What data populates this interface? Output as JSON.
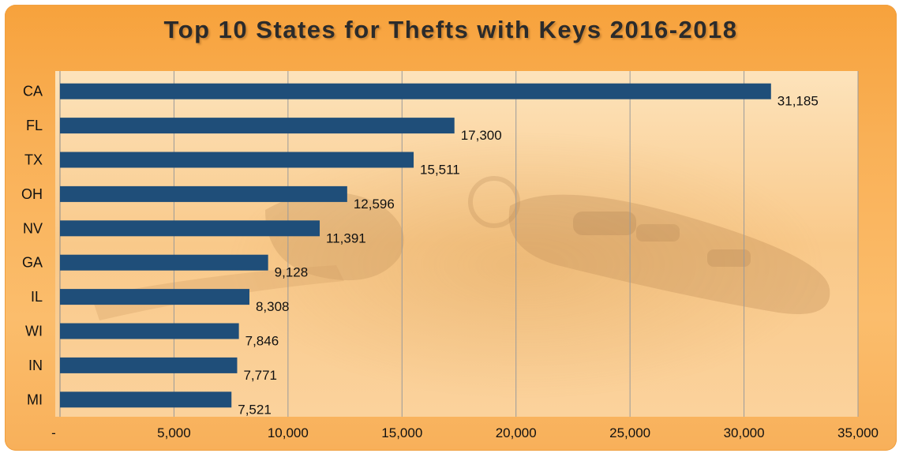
{
  "chart_data": {
    "type": "bar",
    "orientation": "horizontal",
    "title": "Top 10 States for Thefts with Keys 2016-2018",
    "categories": [
      "CA",
      "FL",
      "TX",
      "OH",
      "NV",
      "GA",
      "IL",
      "WI",
      "IN",
      "MI"
    ],
    "values": [
      31185,
      17300,
      15511,
      12596,
      11391,
      9128,
      8308,
      7846,
      7771,
      7521
    ],
    "value_labels": [
      "31,185",
      "17,300",
      "15,511",
      "12,596",
      "11,391",
      "9,128",
      "8,308",
      "7,846",
      "7,771",
      "7,521"
    ],
    "xlim": [
      0,
      35000
    ],
    "x_ticks": [
      0,
      5000,
      10000,
      15000,
      20000,
      25000,
      30000,
      35000
    ],
    "x_tick_labels": [
      "-",
      "5,000",
      "10,000",
      "15,000",
      "20,000",
      "25,000",
      "30,000",
      "35,000"
    ],
    "grid": "vertical",
    "colors": {
      "bar": "#1f4e79",
      "frame": "#f9ac4f",
      "plot_area": "#fcd9a6",
      "grid": "#9a9a9a"
    }
  }
}
